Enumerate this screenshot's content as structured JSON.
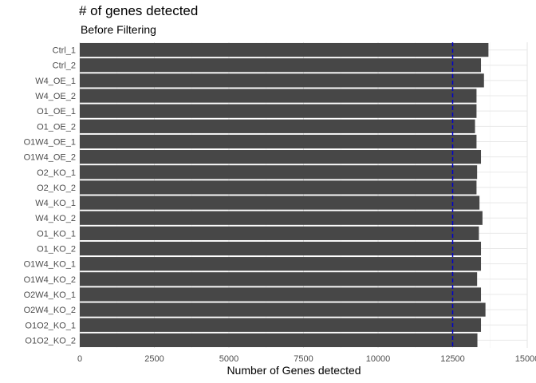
{
  "chart_data": {
    "type": "bar",
    "orientation": "horizontal",
    "title": "# of genes detected",
    "subtitle": "Before Filtering",
    "xlabel": "Number of Genes detected",
    "ylabel": "",
    "xlim": [
      0,
      15000
    ],
    "xticks": [
      0,
      2500,
      5000,
      7500,
      10000,
      12500,
      15000
    ],
    "grid": true,
    "legend": "none",
    "reference_line": {
      "x": 12500,
      "style": "dashed",
      "color": "#0000cc"
    },
    "bar_color": "#474747",
    "categories": [
      "Ctrl_1",
      "Ctrl_2",
      "W4_OE_1",
      "W4_OE_2",
      "O1_OE_1",
      "O1_OE_2",
      "O1W4_OE_1",
      "O1W4_OE_2",
      "O2_KO_1",
      "O2_KO_2",
      "W4_KO_1",
      "W4_KO_2",
      "O1_KO_1",
      "O1_KO_2",
      "O1W4_KO_1",
      "O1W4_KO_2",
      "O2W4_KO_1",
      "O2W4_KO_2",
      "O1O2_KO_1",
      "O1O2_KO_2"
    ],
    "values": [
      13700,
      13450,
      13550,
      13300,
      13300,
      13250,
      13300,
      13450,
      13320,
      13300,
      13400,
      13500,
      13380,
      13450,
      13450,
      13320,
      13450,
      13600,
      13450,
      13330
    ]
  }
}
